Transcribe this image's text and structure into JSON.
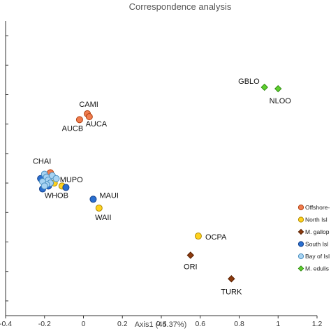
{
  "chart_data": {
    "type": "scatter",
    "title": "Correspondence analysis",
    "xlabel": "Axis1 (45.37%)",
    "ylabel": "",
    "xlim": [
      -0.4,
      1.2
    ],
    "ylim": [
      -0.9,
      1.1
    ],
    "x_ticks": [
      -0.4,
      -0.2,
      0,
      0.2,
      0.4,
      0.6,
      0.8,
      1,
      1.2
    ],
    "x_tick_labels": [
      "-0.4",
      "-0.2",
      "0",
      "0.2",
      "0.4",
      "0.6",
      "0.8",
      "1",
      "1.2"
    ],
    "y_ticks": [
      -0.8,
      -0.6,
      -0.4,
      -0.2,
      0,
      0.2,
      0.4,
      0.6,
      0.8,
      1.0
    ],
    "grid": false,
    "legend_position": "right",
    "series": [
      {
        "name": "Offshore-",
        "marker": "circle",
        "color": "#f07c4e",
        "stroke": "#b04010",
        "points": [
          [
            0.02,
            0.47
          ],
          [
            0.03,
            0.45
          ],
          [
            -0.02,
            0.43
          ],
          [
            -0.17,
            0.07
          ]
        ],
        "labels": [
          "CAMI",
          "AUCA",
          "AUCB",
          "CHAI"
        ]
      },
      {
        "name": "North Isl",
        "marker": "circle",
        "color": "#ffd21f",
        "stroke": "#b08a00",
        "points": [
          [
            -0.15,
            0.0
          ],
          [
            -0.11,
            -0.02
          ],
          [
            0.08,
            -0.17
          ],
          [
            0.59,
            -0.36
          ]
        ],
        "labels": [
          "MUPO",
          "WHOB",
          "WAII",
          "OCPA"
        ]
      },
      {
        "name": "M. gallop",
        "marker": "diamond",
        "color": "#8b3a0e",
        "stroke": "#5a2000",
        "points": [
          [
            0.55,
            -0.49
          ],
          [
            0.76,
            -0.65
          ]
        ],
        "labels": [
          "ORI",
          "TURK"
        ]
      },
      {
        "name": "South Isl",
        "marker": "circle",
        "color": "#2a6fd0",
        "stroke": "#123f8a",
        "points": [
          [
            -0.22,
            0.03
          ],
          [
            -0.21,
            -0.04
          ],
          [
            -0.09,
            -0.03
          ],
          [
            0.05,
            -0.11
          ],
          [
            -0.2,
            0.0
          ],
          [
            -0.18,
            -0.02
          ]
        ],
        "labels": [
          "",
          "",
          "",
          "MAUI",
          "",
          ""
        ]
      },
      {
        "name": "Bay of Isl",
        "marker": "circle",
        "color": "#a7d3f2",
        "stroke": "#4a8fc0",
        "points": [
          [
            -0.2,
            0.06
          ],
          [
            -0.19,
            0.04
          ],
          [
            -0.18,
            0.02
          ],
          [
            -0.17,
            0.0
          ],
          [
            -0.19,
            -0.01
          ],
          [
            -0.16,
            0.05
          ],
          [
            -0.21,
            0.01
          ],
          [
            -0.2,
            -0.02
          ],
          [
            -0.14,
            0.03
          ]
        ],
        "labels": [
          "",
          "",
          "",
          "",
          "",
          "",
          "",
          "",
          ""
        ]
      },
      {
        "name": "M. edulis",
        "marker": "diamond",
        "color": "#5ecf2e",
        "stroke": "#2e8a10",
        "points": [
          [
            0.93,
            0.65
          ],
          [
            1.0,
            0.64
          ]
        ],
        "labels": [
          "GBLO",
          "NLOO"
        ]
      }
    ]
  }
}
